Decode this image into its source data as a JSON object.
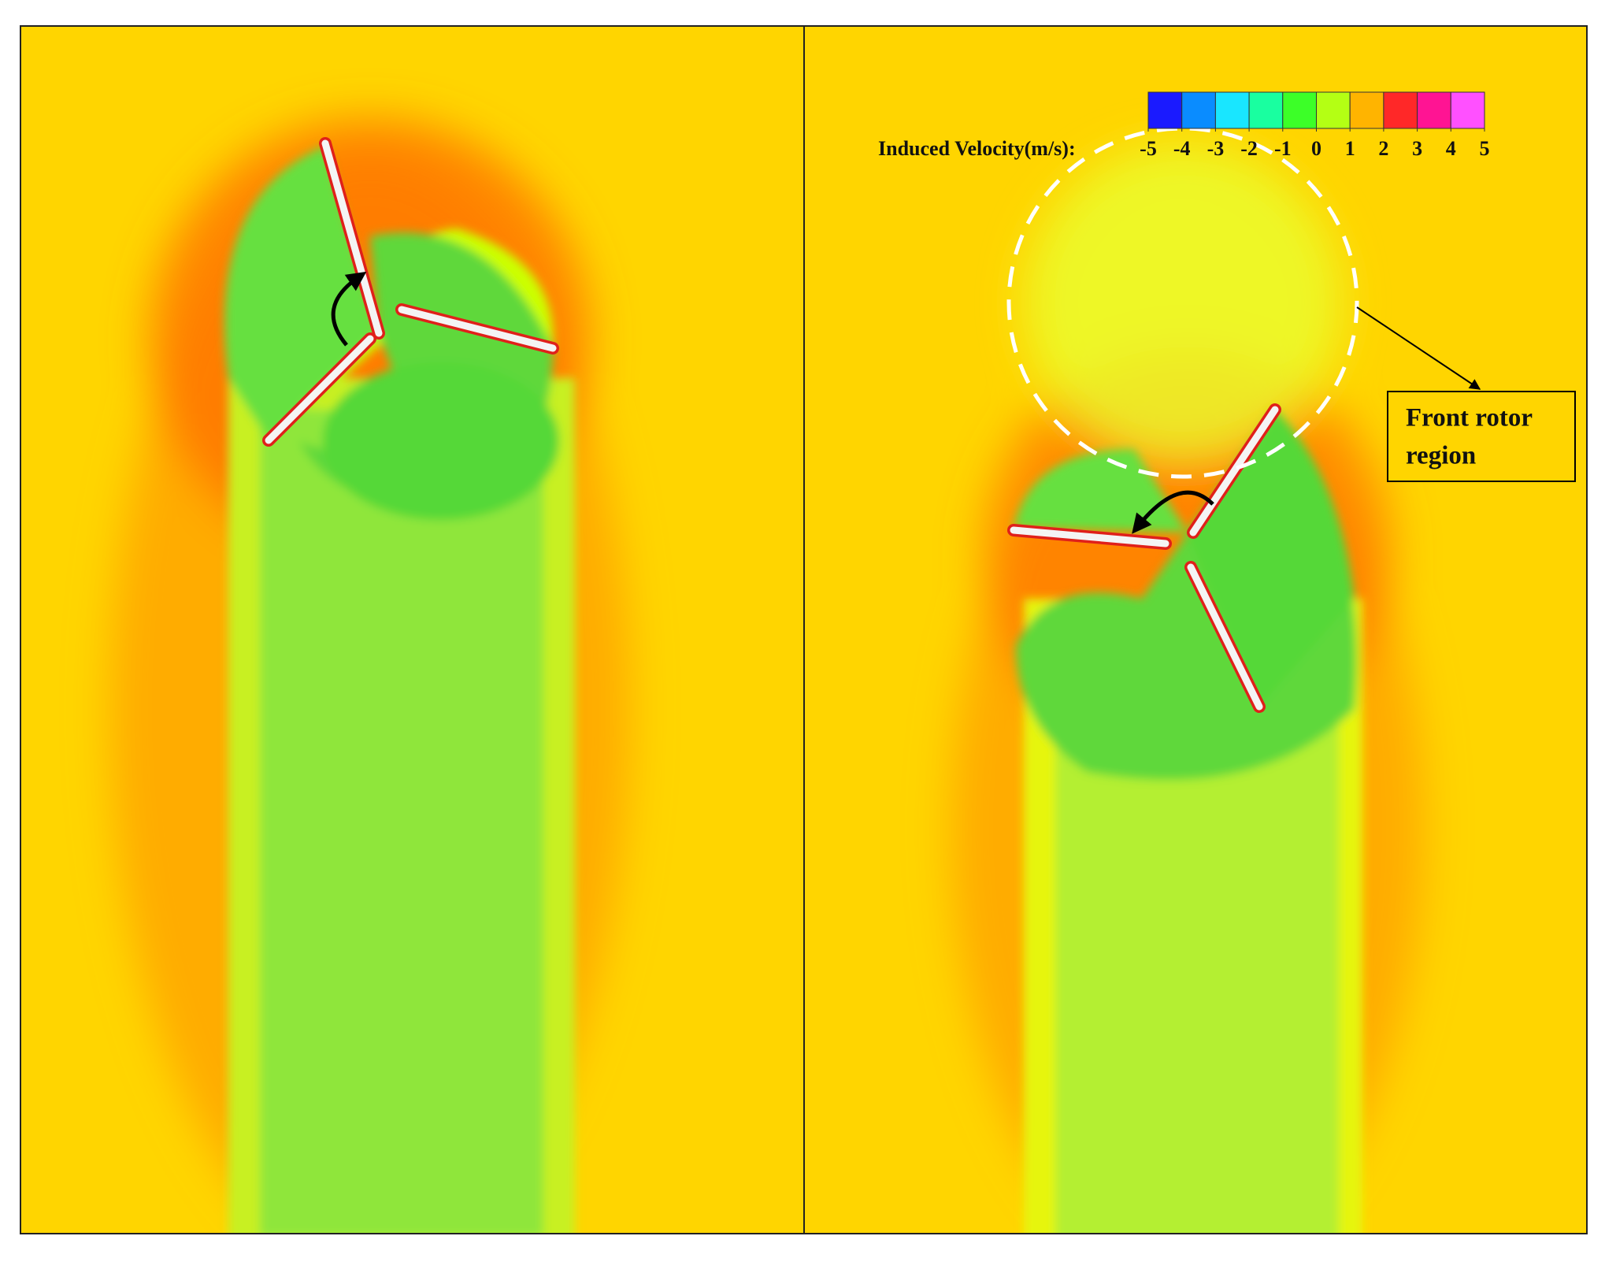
{
  "colorbar": {
    "label": "Induced Velocity(m/s):",
    "ticks": [
      -5,
      -4,
      -3,
      -2,
      -1,
      0,
      1,
      2,
      3,
      4,
      5
    ],
    "colors": [
      "#1a1aff",
      "#0a8cff",
      "#19e6ff",
      "#19ffa0",
      "#3cff28",
      "#b4ff14",
      "#ffb400",
      "#ff2828",
      "#ff1493",
      "#ff50ff"
    ]
  },
  "annotation": {
    "lines": [
      "Front rotor",
      "region"
    ]
  }
}
